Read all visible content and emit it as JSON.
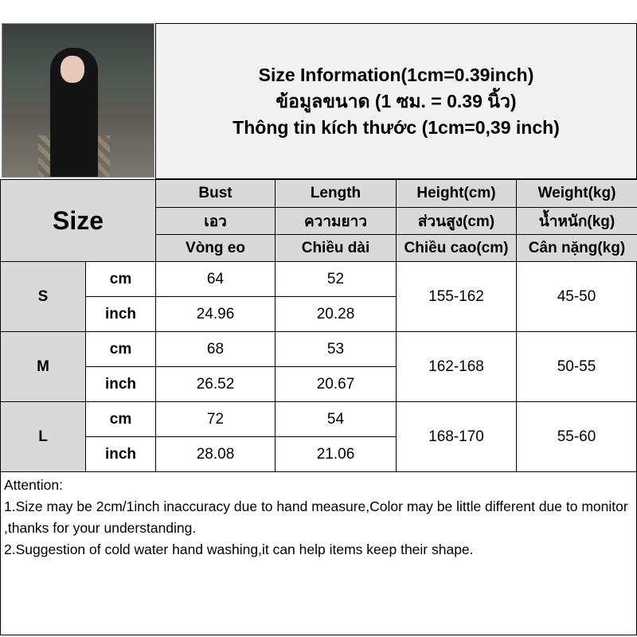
{
  "header": {
    "lines": [
      "Size Information(1cm=0.39inch)",
      "ข้อมูลขนาด (1 ซม. = 0.39 นิ้ว)",
      "Thông tin kích thước (1cm=0,39 inch)"
    ]
  },
  "table": {
    "size_label": "Size",
    "columns": [
      [
        "Bust",
        "เอว",
        "Vòng eo"
      ],
      [
        "Length",
        "ความยาว",
        "Chiều dài"
      ],
      [
        "Height(cm)",
        "ส่วนสูง(cm)",
        "Chiều cao(cm)"
      ],
      [
        "Weight(kg)",
        "น้ำหนัก(kg)",
        "Cân nặng(kg)"
      ]
    ],
    "rows": [
      {
        "size": "S",
        "unit_cm": "cm",
        "unit_inch": "inch",
        "bust_cm": "64",
        "length_cm": "52",
        "bust_inch": "24.96",
        "length_inch": "20.28",
        "height": "155-162",
        "weight": "45-50"
      },
      {
        "size": "M",
        "unit_cm": "cm",
        "unit_inch": "inch",
        "bust_cm": "68",
        "length_cm": "53",
        "bust_inch": "26.52",
        "length_inch": "20.67",
        "height": "162-168",
        "weight": "50-55"
      },
      {
        "size": "L",
        "unit_cm": "cm",
        "unit_inch": "inch",
        "bust_cm": "72",
        "length_cm": "54",
        "bust_inch": "28.08",
        "length_inch": "21.06",
        "height": "168-170",
        "weight": "55-60"
      }
    ]
  },
  "attention": {
    "title": "Attention:",
    "notes": [
      "1.Size may be 2cm/1inch inaccuracy due to hand measure,Color may be little different due to monitor ,thanks for your understanding.",
      "2.Suggestion of cold water hand washing,it can help items keep their shape."
    ]
  }
}
